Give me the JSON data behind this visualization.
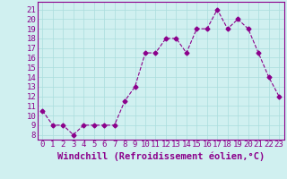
{
  "x": [
    0,
    1,
    2,
    3,
    4,
    5,
    6,
    7,
    8,
    9,
    10,
    11,
    12,
    13,
    14,
    15,
    16,
    17,
    18,
    19,
    20,
    21,
    22,
    23
  ],
  "y": [
    10.5,
    9.0,
    9.0,
    8.0,
    9.0,
    9.0,
    9.0,
    9.0,
    11.5,
    13.0,
    16.5,
    16.5,
    18.0,
    18.0,
    16.5,
    19.0,
    19.0,
    21.0,
    19.0,
    20.0,
    19.0,
    16.5,
    14.0,
    12.0
  ],
  "line_color": "#8B008B",
  "marker": "D",
  "marker_size": 2.5,
  "bg_color": "#d0f0f0",
  "grid_color": "#aadddd",
  "xlabel": "Windchill (Refroidissement éolien,°C)",
  "xlabel_color": "#8B008B",
  "ylabel_ticks": [
    8,
    9,
    10,
    11,
    12,
    13,
    14,
    15,
    16,
    17,
    18,
    19,
    20,
    21
  ],
  "ylim": [
    7.5,
    21.8
  ],
  "xlim": [
    -0.5,
    23.5
  ],
  "xtick_labels": [
    "0",
    "1",
    "2",
    "3",
    "4",
    "5",
    "6",
    "7",
    "8",
    "9",
    "10",
    "11",
    "12",
    "13",
    "14",
    "15",
    "16",
    "17",
    "18",
    "19",
    "20",
    "21",
    "22",
    "23"
  ],
  "tick_fontsize": 6.5,
  "xlabel_fontsize": 7.5
}
